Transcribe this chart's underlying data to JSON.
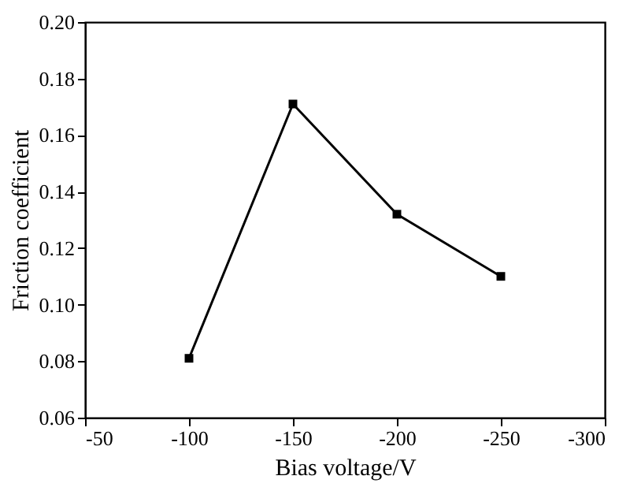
{
  "chart_data": {
    "type": "line",
    "xlabel": "Bias voltage/V",
    "ylabel": "Friction coefficient",
    "x": [
      -100,
      -150,
      -200,
      -250
    ],
    "series": [
      {
        "color": "#000000",
        "values": [
          0.081,
          0.171,
          0.132,
          0.11
        ]
      }
    ],
    "xlim": [
      -50,
      -300
    ],
    "xticks": [
      -50,
      -100,
      -150,
      -200,
      -250,
      -300
    ],
    "ylim": [
      0.06,
      0.2
    ],
    "yticks": [
      {
        "value": 0.06,
        "label": "0.06"
      },
      {
        "value": 0.08,
        "label": "0.08"
      },
      {
        "value": 0.1,
        "label": "0.10"
      },
      {
        "value": 0.12,
        "label": "0.12"
      },
      {
        "value": 0.14,
        "label": "0.14"
      },
      {
        "value": 0.16,
        "label": "0.16"
      },
      {
        "value": 0.18,
        "label": "0.18"
      },
      {
        "value": 0.2,
        "label": "0.20"
      }
    ],
    "marker": "square",
    "line_style": "solid",
    "grid": false,
    "legend": false
  }
}
